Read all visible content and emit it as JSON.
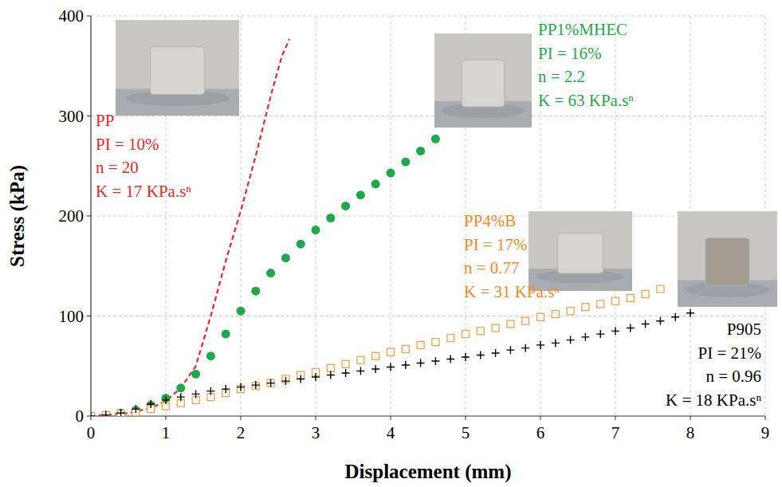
{
  "chart_data": {
    "type": "line",
    "x_label": "Displacement (mm)",
    "y_label": "Stress (kPa)",
    "xlim": [
      0,
      9
    ],
    "xticks": [
      0,
      1,
      2,
      3,
      4,
      5,
      6,
      7,
      8,
      9
    ],
    "ylim": [
      0,
      400
    ],
    "yticks": [
      0,
      100,
      200,
      300,
      400
    ],
    "grid": true,
    "series": [
      {
        "name": "PP",
        "color": "#e8262a",
        "marker": "none",
        "line_style": "dashed",
        "labels": [
          "PI = 10%",
          "n = 20",
          "K = 17 KPa.sⁿ"
        ],
        "x": [
          0,
          0.5,
          0.8,
          1.0,
          1.2,
          1.4,
          1.6,
          1.8,
          2.0,
          2.2,
          2.4,
          2.55,
          2.65
        ],
        "values": [
          0,
          3,
          8,
          15,
          28,
          50,
          100,
          155,
          205,
          260,
          320,
          360,
          377
        ]
      },
      {
        "name": "PP1%MHEC",
        "color": "#1fa84a",
        "marker": "circle",
        "line_style": "none",
        "labels": [
          "PI = 16%",
          "n = 2.2",
          "K = 63 KPa.sⁿ"
        ],
        "x": [
          0,
          0.2,
          0.4,
          0.6,
          0.8,
          1.0,
          1.2,
          1.4,
          1.6,
          1.8,
          2.0,
          2.2,
          2.4,
          2.6,
          2.8,
          3.0,
          3.2,
          3.4,
          3.6,
          3.8,
          4.0,
          4.2,
          4.4,
          4.6
        ],
        "values": [
          0,
          1,
          3,
          6,
          11,
          18,
          28,
          42,
          60,
          82,
          105,
          125,
          143,
          158,
          172,
          186,
          198,
          210,
          221,
          232,
          243,
          254,
          265,
          277
        ]
      },
      {
        "name": "PP4%B",
        "color": "#f5a04a",
        "marker": "square",
        "line_style": "none",
        "labels": [
          "PI = 17%",
          "n = 0.77",
          "K = 31 KPa.sⁿ"
        ],
        "x": [
          0,
          0.2,
          0.4,
          0.6,
          0.8,
          1.0,
          1.2,
          1.4,
          1.6,
          1.8,
          2.0,
          2.2,
          2.4,
          2.6,
          2.8,
          3.0,
          3.2,
          3.4,
          3.6,
          3.8,
          4.0,
          4.2,
          4.4,
          4.6,
          4.8,
          5.0,
          5.2,
          5.4,
          5.6,
          5.8,
          6.0,
          6.2,
          6.4,
          6.6,
          6.8,
          7.0,
          7.2,
          7.4,
          7.6
        ],
        "values": [
          0,
          1,
          2,
          4,
          7,
          10,
          13,
          16,
          19,
          23,
          27,
          30,
          33,
          37,
          41,
          44,
          48,
          52,
          56,
          60,
          64,
          67,
          71,
          74,
          78,
          82,
          85,
          88,
          92,
          95,
          99,
          102,
          105,
          109,
          112,
          115,
          118,
          122,
          127
        ]
      },
      {
        "name": "P905",
        "color": "#000000",
        "marker": "plus",
        "line_style": "none",
        "labels": [
          "PI = 21%",
          "n = 0.96",
          "K = 18 KPa.sⁿ"
        ],
        "x": [
          0,
          0.2,
          0.4,
          0.6,
          0.8,
          1.0,
          1.2,
          1.4,
          1.6,
          1.8,
          2.0,
          2.2,
          2.4,
          2.6,
          2.8,
          3.0,
          3.2,
          3.4,
          3.6,
          3.8,
          4.0,
          4.2,
          4.4,
          4.6,
          4.8,
          5.0,
          5.2,
          5.4,
          5.6,
          5.8,
          6.0,
          6.2,
          6.4,
          6.6,
          6.8,
          7.0,
          7.2,
          7.4,
          7.6,
          7.8,
          8.0
        ],
        "values": [
          0,
          1,
          3,
          7,
          12,
          16,
          19,
          22,
          25,
          27,
          29,
          31,
          33,
          35,
          37,
          39,
          41,
          43,
          45,
          47,
          49,
          51,
          53,
          55,
          57,
          59,
          61,
          63,
          66,
          68,
          71,
          73,
          76,
          79,
          82,
          85,
          88,
          92,
          95,
          99,
          103
        ]
      }
    ]
  }
}
